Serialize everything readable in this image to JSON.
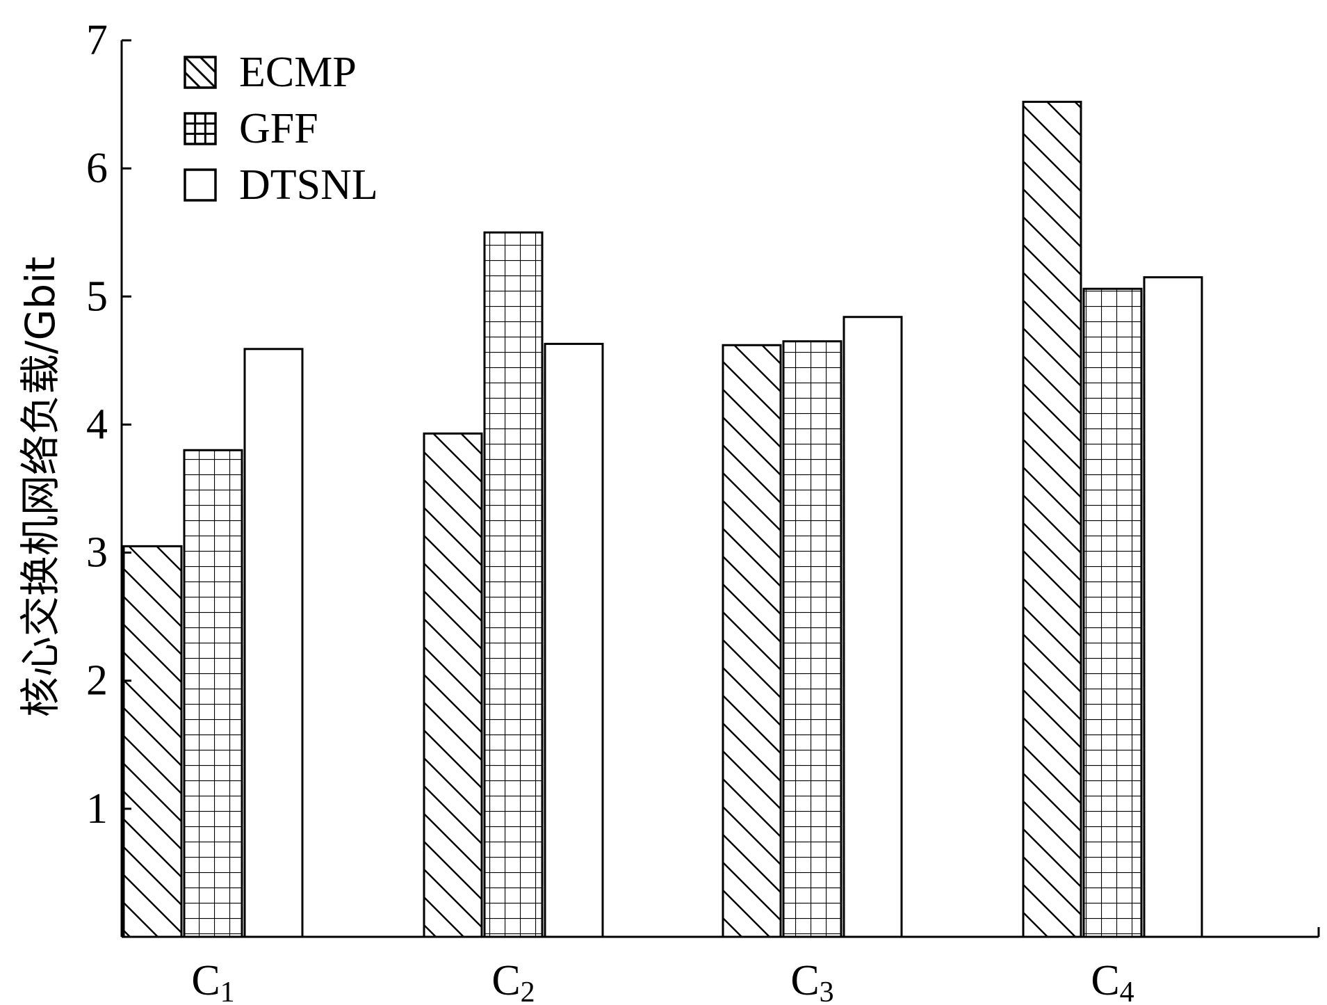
{
  "chart_data": {
    "type": "bar",
    "title": "",
    "xlabel": "",
    "ylabel": "核心交换机网络负载/Gbit",
    "ylim": [
      0,
      7
    ],
    "yticks": [
      1,
      2,
      3,
      4,
      5,
      6,
      7
    ],
    "categories": [
      {
        "base": "C",
        "sub": "1"
      },
      {
        "base": "C",
        "sub": "2"
      },
      {
        "base": "C",
        "sub": "3"
      },
      {
        "base": "C",
        "sub": "4"
      }
    ],
    "series": [
      {
        "name": "ECMP",
        "pattern": "diagonal-hatch",
        "values": [
          3.05,
          3.93,
          4.62,
          6.52
        ]
      },
      {
        "name": "GFF",
        "pattern": "grid-hatch",
        "values": [
          3.8,
          5.5,
          4.65,
          5.06
        ]
      },
      {
        "name": "DTSNL",
        "pattern": "none",
        "values": [
          4.59,
          4.63,
          4.84,
          5.15
        ]
      }
    ],
    "legend_position": "top-left",
    "grid": false
  }
}
